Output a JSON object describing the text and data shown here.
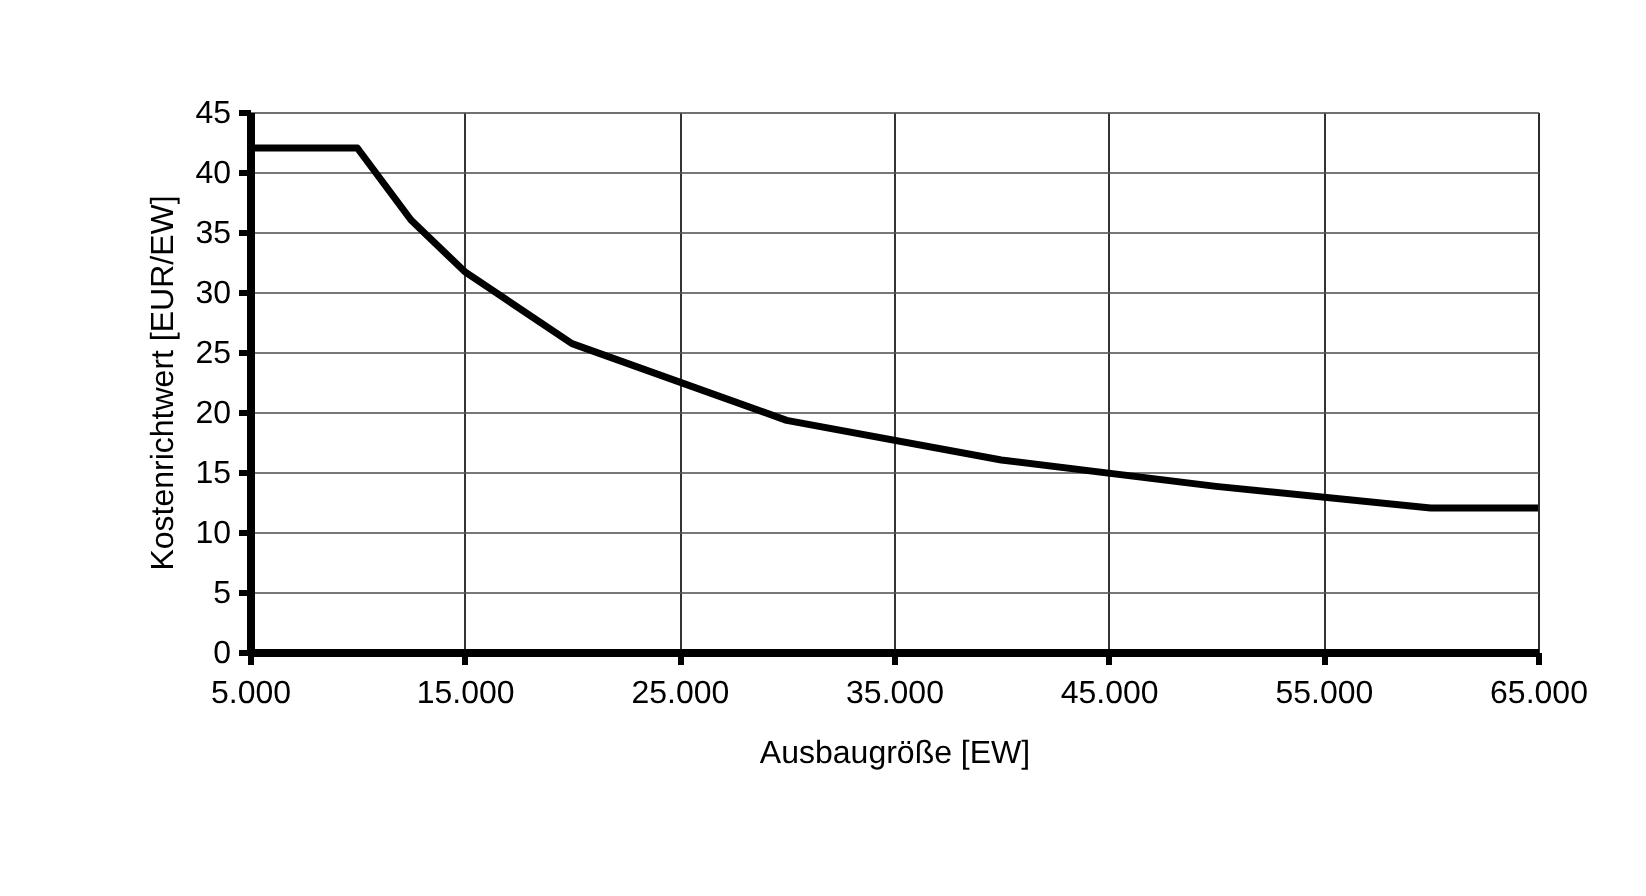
{
  "chart_data": {
    "type": "line",
    "xlabel": "Ausbaugröße [EW]",
    "ylabel": "Kostenrichtwert [EUR/EW]",
    "x": [
      5000,
      10000,
      12500,
      15000,
      20000,
      30000,
      40000,
      50000,
      60000,
      65000
    ],
    "series": [
      {
        "color": "#000000",
        "values": [
          42,
          42,
          36,
          31.7,
          25.7,
          19.3,
          16,
          13.8,
          12,
          12
        ]
      }
    ],
    "xlim": [
      5000,
      65000
    ],
    "xticks": [
      {
        "value": 5000,
        "label": "5.000"
      },
      {
        "value": 15000,
        "label": "15.000"
      },
      {
        "value": 25000,
        "label": "25.000"
      },
      {
        "value": 35000,
        "label": "35.000"
      },
      {
        "value": 45000,
        "label": "45.000"
      },
      {
        "value": 55000,
        "label": "55.000"
      },
      {
        "value": 65000,
        "label": "65.000"
      }
    ],
    "ylim": [
      0,
      45
    ],
    "yticks": [
      0,
      5,
      10,
      15,
      20,
      25,
      30,
      35,
      40,
      45
    ],
    "grid": true,
    "legend": false,
    "marker": "none",
    "line_style": "solid"
  }
}
